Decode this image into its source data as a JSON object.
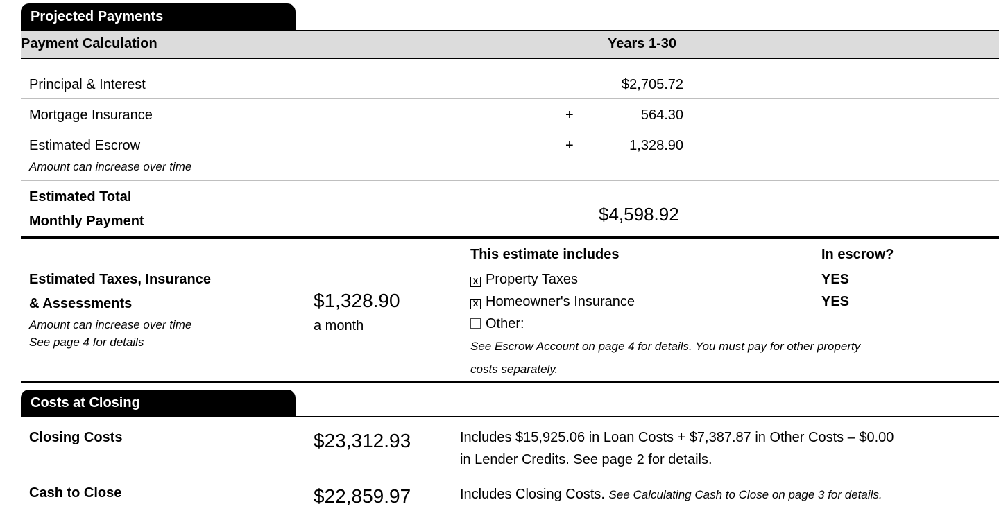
{
  "projected": {
    "tab_label": "Projected Payments",
    "header_left": "Payment Calculation",
    "header_right": "Years 1-30",
    "rows": [
      {
        "label": "Principal & Interest",
        "sign": "",
        "value": "$2,705.72"
      },
      {
        "label": "Mortgage Insurance",
        "sign": "+",
        "value": "564.30"
      },
      {
        "label": "Estimated Escrow",
        "note": "Amount can increase over time",
        "sign": "+",
        "value": "1,328.90"
      }
    ],
    "total_label_line1": "Estimated Total",
    "total_label_line2": "Monthly Payment",
    "total_value": "$4,598.92"
  },
  "taxes": {
    "label_line1": "Estimated Taxes, Insurance",
    "label_line2": "& Assessments",
    "note_line1": "Amount can increase over time",
    "note_line2": "See page 4 for details",
    "amount": "$1,328.90",
    "amount_sub": "a month",
    "includes_header": "This estimate includes",
    "escrow_header": "In escrow?",
    "items": [
      {
        "checked": true,
        "mark": "X",
        "label": "Property Taxes",
        "escrow": "YES"
      },
      {
        "checked": true,
        "mark": "X",
        "label": "Homeowner's Insurance",
        "escrow": "YES"
      },
      {
        "checked": false,
        "mark": "",
        "label": "Other:",
        "escrow": ""
      }
    ],
    "footnote_line1": "See Escrow Account on page 4 for details. You must pay for other property",
    "footnote_line2": "costs separately."
  },
  "closing": {
    "tab_label": "Costs at Closing",
    "closing_costs_label": "Closing Costs",
    "closing_costs_amount": "$23,312.93",
    "closing_costs_desc_line1": "Includes $15,925.06 in Loan Costs + $7,387.87 in Other Costs – $0.00",
    "closing_costs_desc_line2": "in Lender Credits. See page 2 for details.",
    "cash_label": "Cash to Close",
    "cash_amount": "$22,859.97",
    "cash_desc_plain": "Includes Closing Costs.",
    "cash_desc_italic": "See Calculating Cash to Close on page 3 for details."
  }
}
